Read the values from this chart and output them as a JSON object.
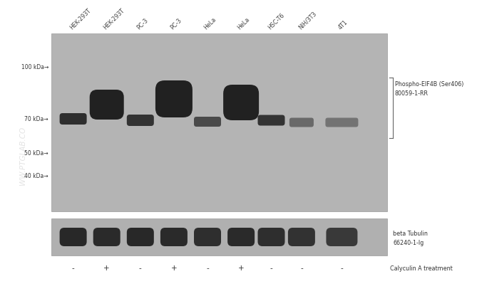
{
  "bg_color": "#ffffff",
  "blot_bg_main": "#b4b4b4",
  "blot_bg_lower": "#b0b0b0",
  "band_dark": "#1c1c1c",
  "band_mid": "#303030",
  "band_light": "#505050",
  "band_vlight": "#707070",
  "lane_labels": [
    "HEK-293T",
    "HEK-293T",
    "PC-3",
    "PC-3",
    "HeLa",
    "HeLa",
    "HSC-T6",
    "NIH/3T3",
    "4T1"
  ],
  "treatment_labels": [
    "-",
    "+",
    "-",
    "+",
    "-",
    "+",
    "-",
    "-",
    "-"
  ],
  "mw_labels": [
    "100 kDa→",
    "70 kDa→",
    "50 kDa→",
    "40 kDa→"
  ],
  "antibody_label1": "Phospho-EIF4B (Ser406)",
  "antibody_label2": "80059-1-RR",
  "tubulin_label1": "beta Tubulin",
  "tubulin_label2": "66240-1-lg",
  "calyculin_label": "Calyculin A treatment",
  "watermark": "WW.PTGLAB.CO"
}
